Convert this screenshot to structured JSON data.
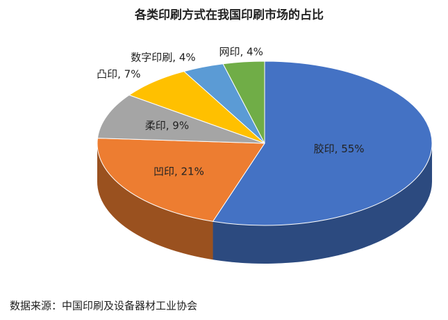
{
  "chart_data": {
    "type": "pie3d",
    "title": "各类印刷方式在我国印刷市场的占比",
    "values": [
      55,
      21,
      9,
      7,
      4,
      4
    ],
    "value_labels": [
      "胶印, 55%",
      "凹印, 21%",
      "柔印, 9%",
      "凸印, 7%",
      "数字印刷, 4%",
      "网印, 4%"
    ],
    "colors": [
      "#4472c4",
      "#ed7d31",
      "#a5a5a5",
      "#ffc000",
      "#5b9bd5",
      "#70ad47"
    ],
    "source": "数据来源：中国印刷及设备器材工业协会"
  }
}
